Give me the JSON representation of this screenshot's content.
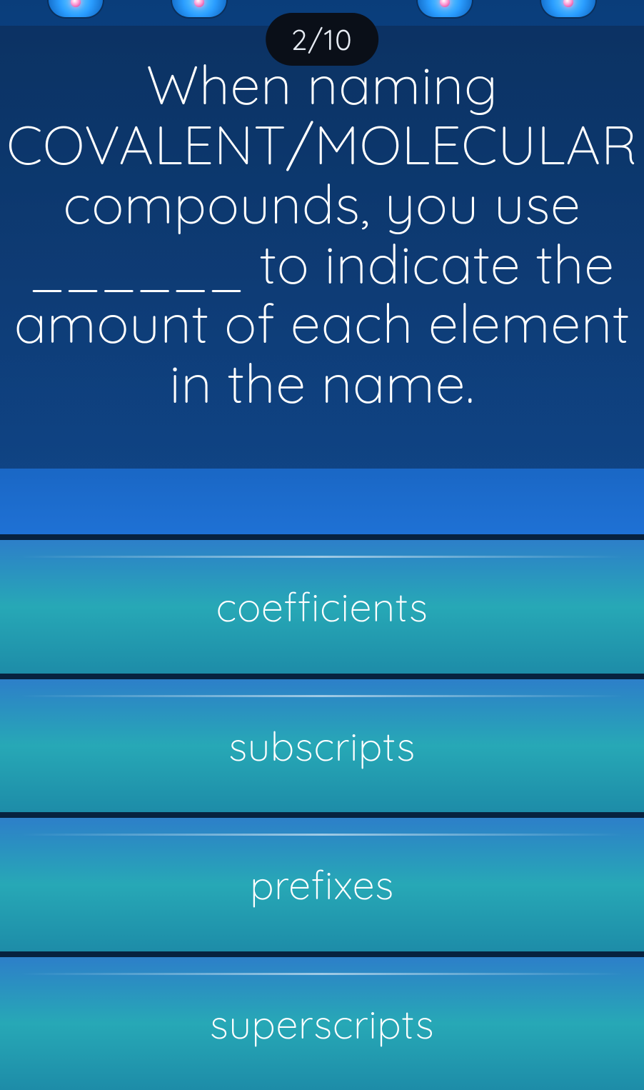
{
  "theme": {
    "background_gradient": [
      "#0a3d7a",
      "#1258ad",
      "#1565c0",
      "#1d6fcc"
    ],
    "panel_overlay": "rgba(12,40,78,0.5)",
    "badge_bg": "#0a0f18",
    "badge_text_color": "#e6ebf2",
    "question_color": "#ffffff",
    "answer_text_color": "#ffffff",
    "divider_color": "#07223f",
    "answer_gradients": [
      [
        "#2d7fc9",
        "#27a8b6",
        "#1d8ca8"
      ],
      [
        "#2d7fc9",
        "#27a8b6",
        "#1d8ca8"
      ],
      [
        "#2d7fc9",
        "#27a8b6",
        "#1d8ca8"
      ],
      [
        "#2d7fc9",
        "#27a8b6",
        "#1d8ca8"
      ]
    ],
    "font_family": "Quicksand, Comfortaa, Segoe UI, sans-serif",
    "question_fontsize": 76,
    "answer_fontsize": 56,
    "badge_fontsize": 40
  },
  "progress": {
    "current": 2,
    "total": 10,
    "display": "2/10"
  },
  "question": {
    "text": "When naming COVALENT/MOLECULAR compounds, you use ______ to indicate the amount of each element in the name."
  },
  "answers": [
    {
      "label": "coefficients"
    },
    {
      "label": "subscripts"
    },
    {
      "label": "prefixes"
    },
    {
      "label": "superscripts"
    }
  ]
}
